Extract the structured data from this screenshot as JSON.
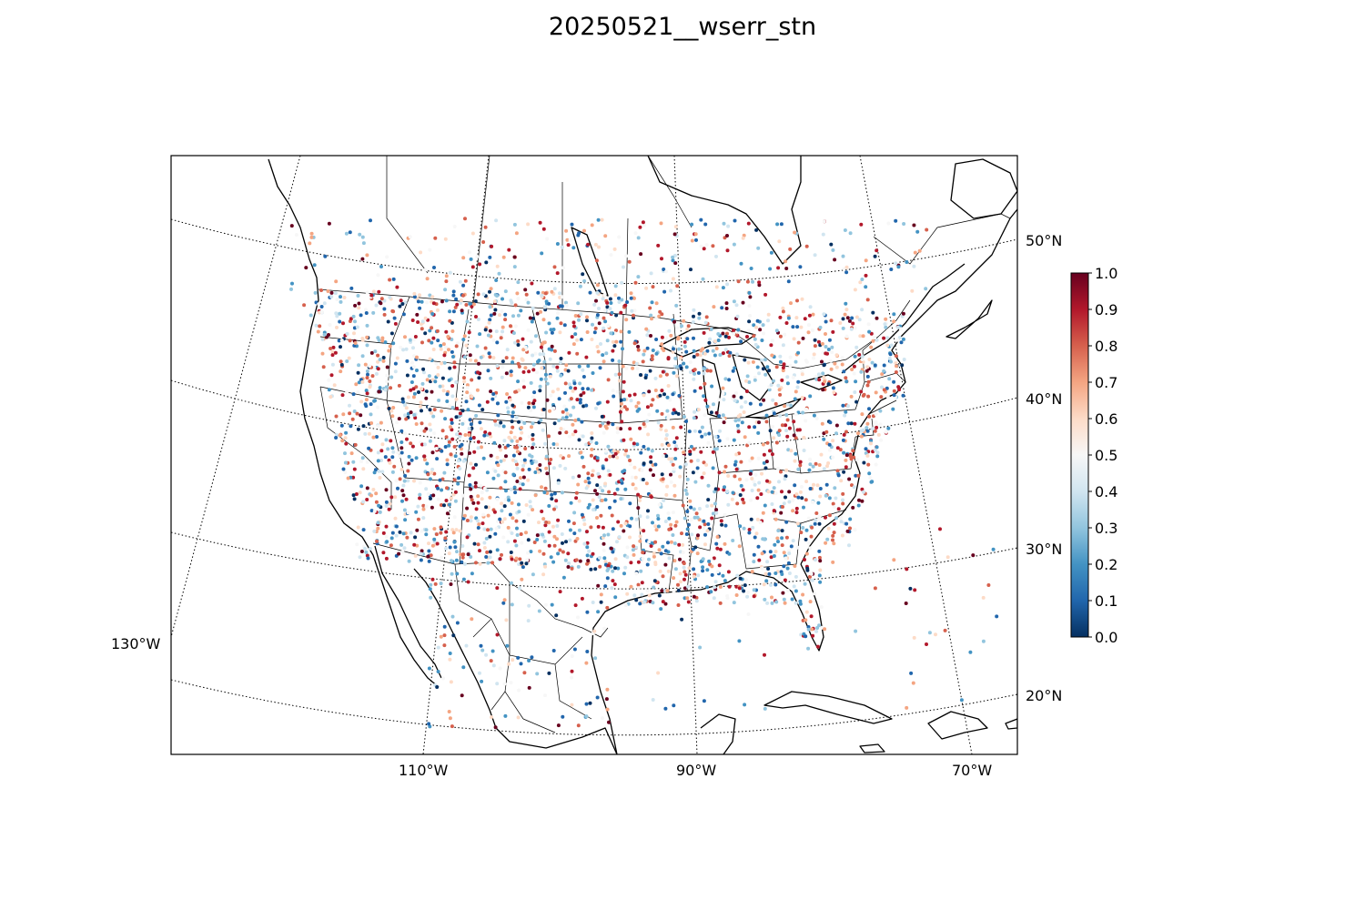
{
  "title": "20250521__wserr_stn",
  "map": {
    "projection": "lambert-conformal",
    "lat_labels": [
      "50°N",
      "40°N",
      "30°N",
      "20°N"
    ],
    "lon_labels": [
      "130°W",
      "110°W",
      "90°W",
      "70°W"
    ],
    "grid": "dotted",
    "coastline_color": "#000000",
    "border_color": "#000000"
  },
  "colorbar": {
    "colormap": "RdBu_r",
    "range": [
      0.0,
      1.0
    ],
    "ticks": [
      "0.0",
      "0.1",
      "0.2",
      "0.3",
      "0.4",
      "0.5",
      "0.6",
      "0.7",
      "0.8",
      "0.9",
      "1.0"
    ],
    "colors": [
      "#053061",
      "#2166ac",
      "#4393c3",
      "#92c5de",
      "#d1e5f0",
      "#f7f7f7",
      "#fddbc7",
      "#f4a582",
      "#d6604d",
      "#b2182b",
      "#67001f"
    ]
  },
  "stations": {
    "value_range": [
      0.0,
      1.0
    ],
    "density": "high over CONUS, sparse over Canada, Mexico and ocean"
  }
}
